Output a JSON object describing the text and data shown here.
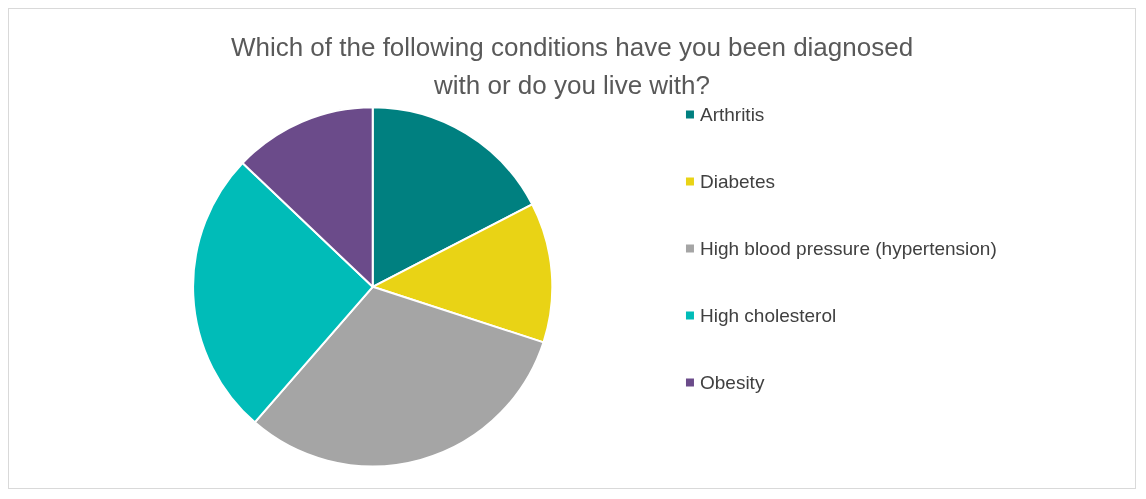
{
  "chart_data": {
    "type": "pie",
    "title": "Which of the following conditions have you been diagnosed\nwith or do you live with?",
    "categories": [
      "Arthritis",
      "Diabetes",
      "High blood pressure (hypertension)",
      "High cholesterol",
      "Obesity"
    ],
    "values": [
      17.4,
      12.6,
      31.4,
      25.7,
      12.9
    ],
    "colors": [
      "#008080",
      "#e9d315",
      "#a5a5a5",
      "#00bcb8",
      "#6b4b8a"
    ],
    "legend": "right"
  }
}
